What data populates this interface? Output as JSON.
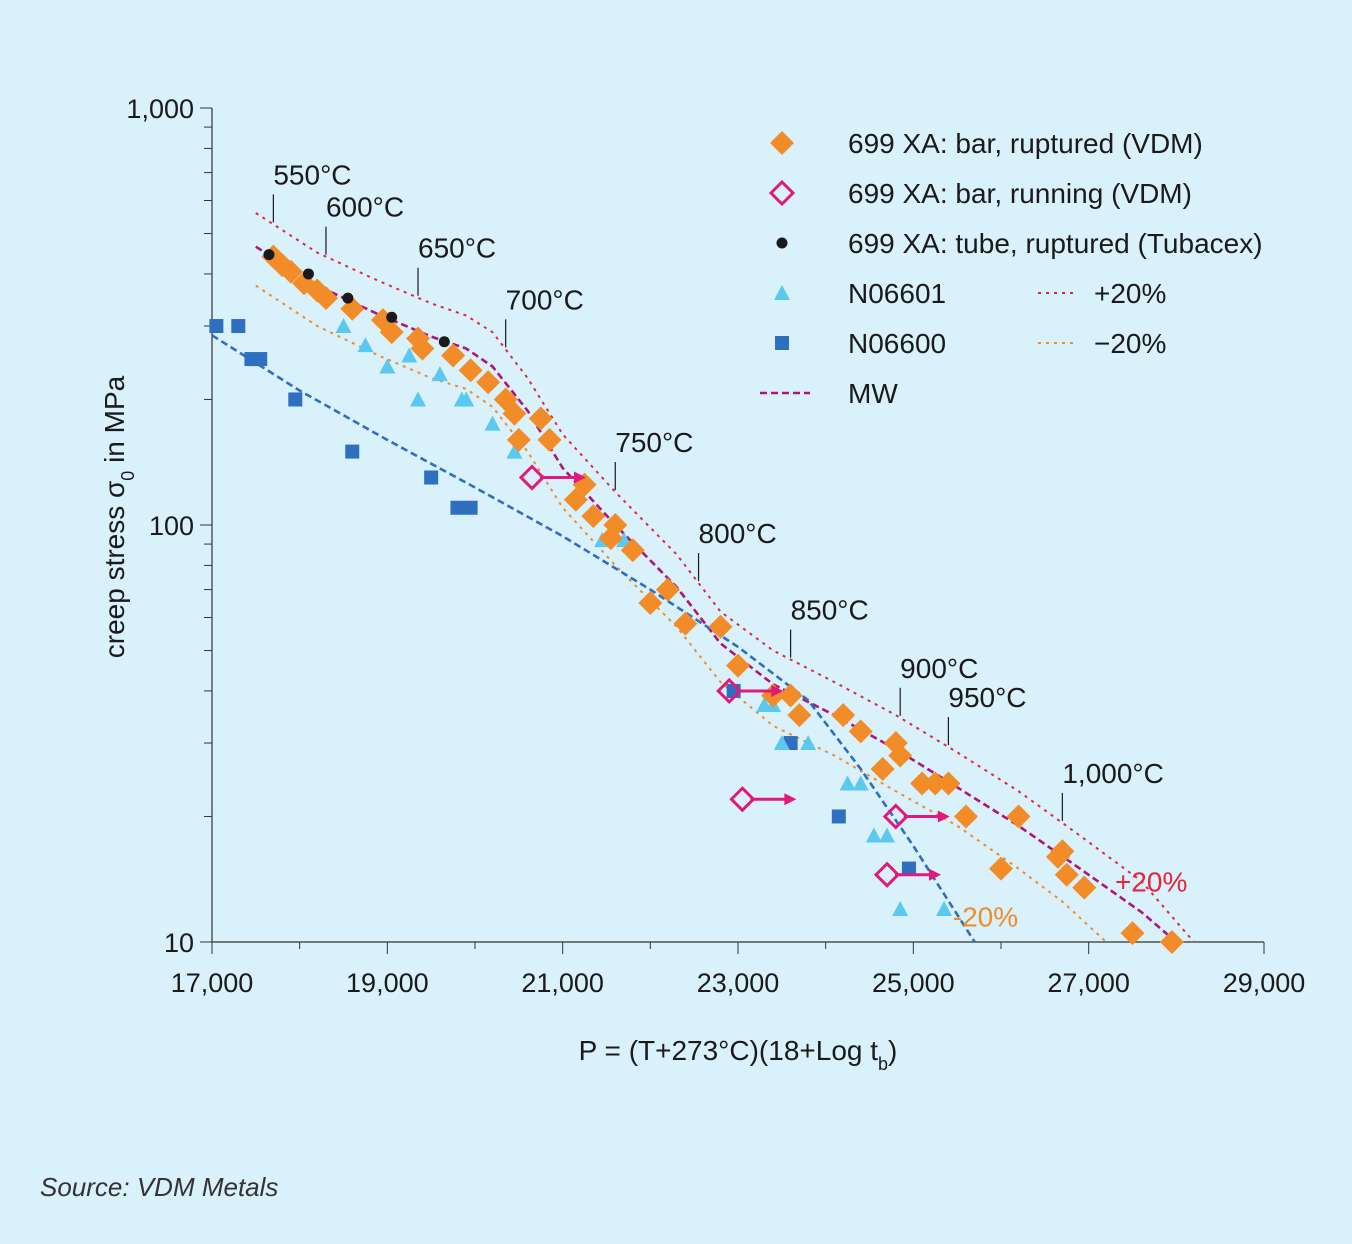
{
  "source": "Source: VDM Metals",
  "chart_data": {
    "type": "scatter",
    "xlabel": "P = (T+273°C)(18+Log t",
    "xlabel_sub": "b",
    "xlabel_end": ")",
    "ylabel": "creep stress σ",
    "ylabel_sub": "0",
    "ylabel_end": " in MPa",
    "xlim": [
      17000,
      29000
    ],
    "ylim": [
      10,
      1000
    ],
    "y_scale": "log",
    "x_ticks": [
      17000,
      19000,
      21000,
      23000,
      25000,
      27000,
      29000
    ],
    "x_tick_labels": [
      "17,000",
      "19,000",
      "21,000",
      "23,000",
      "25,000",
      "27,000",
      "29,000"
    ],
    "y_ticks": [
      10,
      100,
      1000
    ],
    "y_tick_labels": [
      "10",
      "100",
      "1,000"
    ],
    "legend_position": "top-right",
    "colors": {
      "bar_ruptured": "#f28c28",
      "bar_running": "#e0197d",
      "tube_ruptured": "#1a1a1a",
      "n06601": "#5bc8f0",
      "n06600": "#2f6fc0",
      "plus20": "#e3263b",
      "minus20": "#f28c28",
      "mw": "#b0147a",
      "temp_mark": "#1a1a1a"
    },
    "legend": [
      {
        "key": "bar_ruptured",
        "label": "699 XA: bar, ruptured (VDM)",
        "marker": "diamond"
      },
      {
        "key": "bar_running",
        "label": "699 XA: bar, running (VDM)",
        "marker": "diamond-open"
      },
      {
        "key": "tube_ruptured",
        "label": "699 XA: tube, ruptured (Tubacex)",
        "marker": "circle"
      },
      {
        "key": "n06601",
        "label": "N06601",
        "marker": "triangle"
      },
      {
        "key": "n06600",
        "label": "N06600",
        "marker": "square"
      },
      {
        "key": "mw",
        "label": "MW",
        "marker": "dash"
      },
      {
        "key": "plus20",
        "label": "+20%",
        "marker": "dot"
      },
      {
        "key": "minus20",
        "label": "−20%",
        "marker": "dot"
      }
    ],
    "series": [
      {
        "key": "bar_ruptured",
        "name": "699 XA: bar, ruptured (VDM)",
        "x": [
          17700,
          17800,
          17900,
          18050,
          18200,
          18300,
          18600,
          18950,
          19050,
          19350,
          19400,
          19750,
          19950,
          20150,
          20350,
          20450,
          20500,
          20750,
          20850,
          21150,
          21250,
          21350,
          21550,
          21600,
          21800,
          22000,
          22200,
          22400,
          22800,
          23000,
          23400,
          23600,
          23700,
          24200,
          24400,
          24650,
          24800,
          24850,
          25100,
          25250,
          25400,
          25600,
          26000,
          26200,
          26650,
          26700,
          26750,
          26950,
          27500,
          27950
        ],
        "y": [
          440,
          420,
          405,
          380,
          365,
          350,
          330,
          310,
          290,
          280,
          265,
          255,
          235,
          220,
          200,
          185,
          160,
          180,
          160,
          115,
          125,
          105,
          93,
          100,
          87,
          65,
          70,
          58,
          57,
          46,
          39,
          39,
          35,
          35,
          32,
          26,
          30,
          28,
          24,
          24,
          24,
          20,
          15,
          20,
          16,
          16.5,
          14.5,
          13.5,
          10.5,
          10
        ]
      },
      {
        "key": "bar_running",
        "name": "699 XA: bar, running (VDM)",
        "x": [
          20650,
          22900,
          23050,
          24800,
          24700
        ],
        "y": [
          130,
          40,
          22,
          20,
          14.5
        ]
      },
      {
        "key": "tube_ruptured",
        "name": "699 XA: tube, ruptured (Tubacex)",
        "x": [
          17650,
          18100,
          18550,
          19050,
          19650
        ],
        "y": [
          445,
          400,
          350,
          315,
          275
        ]
      },
      {
        "key": "n06601",
        "name": "N06601",
        "x": [
          18500,
          18750,
          19000,
          19250,
          19350,
          19600,
          19850,
          19900,
          20200,
          20450,
          21450,
          21700,
          23300,
          23400,
          23500,
          23800,
          24250,
          24400,
          24550,
          24700,
          24850,
          25350
        ],
        "y": [
          300,
          270,
          240,
          255,
          200,
          230,
          200,
          200,
          175,
          150,
          92,
          92,
          37,
          37,
          30,
          30,
          24,
          24,
          18,
          18,
          12,
          12
        ]
      },
      {
        "key": "n06600",
        "name": "N06600",
        "x": [
          17050,
          17300,
          17450,
          17550,
          17950,
          18600,
          19500,
          19800,
          19950,
          22950,
          23600,
          24150,
          24950
        ],
        "y": [
          300,
          300,
          250,
          250,
          200,
          150,
          130,
          110,
          110,
          40,
          30,
          20,
          15
        ]
      }
    ],
    "curves": [
      {
        "key": "plus20",
        "x": [
          17500,
          18200,
          18900,
          19500,
          19900,
          20200,
          20600,
          21000,
          21600,
          22300,
          22800,
          23400,
          24100,
          24800,
          25500,
          26200,
          26900,
          27600,
          28200
        ],
        "y": [
          560,
          450,
          385,
          340,
          318,
          290,
          225,
          165,
          120,
          85,
          62,
          50,
          42,
          35,
          28.5,
          23,
          18,
          14,
          10
        ]
      },
      {
        "key": "mw",
        "x": [
          17500,
          18200,
          18900,
          19500,
          19900,
          20200,
          20600,
          21000,
          21600,
          22300,
          22800,
          23400,
          24100,
          24800,
          25500,
          26200,
          26900,
          27600,
          28000
        ],
        "y": [
          465,
          375,
          320,
          283,
          265,
          240,
          188,
          137,
          100,
          71,
          52,
          41.5,
          35,
          29,
          23.5,
          19,
          15,
          11.8,
          10
        ]
      },
      {
        "key": "minus20",
        "x": [
          17500,
          18200,
          18900,
          19500,
          19900,
          20200,
          20600,
          21000,
          21600,
          22300,
          22800,
          23400,
          24100,
          24800,
          25500,
          26200,
          26700,
          27200
        ],
        "y": [
          375,
          300,
          255,
          225,
          212,
          192,
          150,
          110,
          80,
          57,
          42,
          33,
          28,
          23,
          19,
          15,
          12.5,
          10
        ]
      },
      {
        "key": "n06600",
        "x": [
          17000,
          18000,
          19000,
          20000,
          21000,
          22000,
          23000,
          23800,
          24400,
          25000,
          25700
        ],
        "y": [
          285,
          210,
          160,
          123,
          94,
          70,
          51,
          38,
          26,
          17,
          10
        ]
      }
    ],
    "temperature_labels": [
      {
        "text": "550°C",
        "x": 17700
      },
      {
        "text": "600°C",
        "x": 18300
      },
      {
        "text": "650°C",
        "x": 19350
      },
      {
        "text": "700°C",
        "x": 20350
      },
      {
        "text": "750°C",
        "x": 21600
      },
      {
        "text": "800°C",
        "x": 22550
      },
      {
        "text": "850°C",
        "x": 23600
      },
      {
        "text": "900°C",
        "x": 24850
      },
      {
        "text": "950°C",
        "x": 25400
      },
      {
        "text": "1,000°C",
        "x": 26700
      }
    ],
    "band_labels": [
      {
        "key": "plus20",
        "text": "+20%"
      },
      {
        "key": "minus20",
        "text": "-20%"
      }
    ]
  }
}
